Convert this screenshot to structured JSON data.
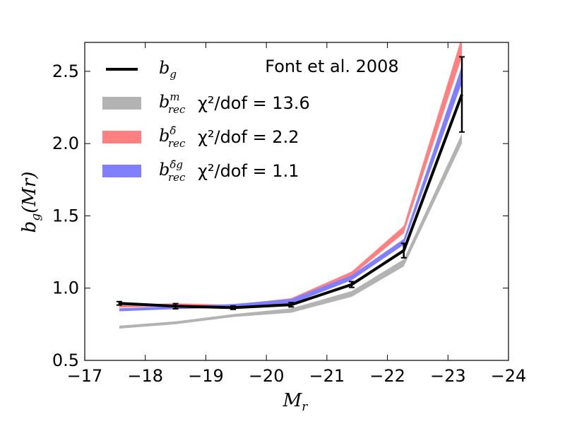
{
  "chart_data": {
    "type": "line",
    "title": "",
    "annotation": "Font et al. 2008",
    "xlabel": {
      "base": "M",
      "sub": "r"
    },
    "ylabel": {
      "base": "b",
      "sub": "g",
      "suffix": "(Mr)"
    },
    "xlim": [
      -17,
      -24
    ],
    "ylim": [
      0.5,
      2.7
    ],
    "xticks": [
      -17,
      -18,
      -19,
      -20,
      -21,
      -22,
      -23,
      -24
    ],
    "xtick_labels": [
      "−17",
      "−18",
      "−19",
      "−20",
      "−21",
      "−22",
      "−23",
      "−24"
    ],
    "yticks": [
      0.5,
      1.0,
      1.5,
      2.0,
      2.5
    ],
    "ytick_labels": [
      "0.5",
      "1.0",
      "1.5",
      "2.0",
      "2.5"
    ],
    "grid": false,
    "legend_position": "top-left",
    "x": [
      -17.57,
      -18.5,
      -19.45,
      -20.41,
      -21.41,
      -22.27,
      -23.23
    ],
    "series": [
      {
        "name": "b_rec^m",
        "legend_base": "b",
        "legend_sup": "m",
        "legend_sub": "rec",
        "stat": "χ²/dof = 13.6",
        "kind": "band",
        "color": "#b3b3b3",
        "lower": [
          0.72,
          0.75,
          0.8,
          0.83,
          0.94,
          1.15,
          2.0
        ],
        "upper": [
          0.74,
          0.77,
          0.82,
          0.86,
          0.98,
          1.2,
          2.07
        ]
      },
      {
        "name": "b_rec^delta",
        "legend_base": "b",
        "legend_sup": "δ̄",
        "legend_sub": "rec",
        "stat": "χ²/dof = 2.2",
        "kind": "band",
        "color": "#ff8080",
        "lower": [
          0.865,
          0.875,
          0.87,
          0.905,
          1.085,
          1.38,
          2.6
        ],
        "upper": [
          0.885,
          0.895,
          0.885,
          0.93,
          1.115,
          1.43,
          2.74
        ]
      },
      {
        "name": "b_rec^delta_g",
        "legend_base": "b",
        "legend_sup": "δ̄g",
        "legend_sub": "rec",
        "stat": "χ²/dof = 1.1",
        "kind": "band",
        "color": "#8080ff",
        "lower": [
          0.84,
          0.855,
          0.865,
          0.89,
          1.055,
          1.3,
          2.42
        ],
        "upper": [
          0.86,
          0.875,
          0.89,
          0.925,
          1.09,
          1.34,
          2.54
        ]
      },
      {
        "name": "b_g",
        "legend_base": "b",
        "legend_sub": "g",
        "stat": "",
        "kind": "line",
        "color": "#000000",
        "values": [
          0.895,
          0.875,
          0.865,
          0.885,
          1.025,
          1.26,
          2.34
        ],
        "errors": [
          0.012,
          0.018,
          0.012,
          0.015,
          0.02,
          0.05,
          0.26
        ]
      }
    ]
  }
}
